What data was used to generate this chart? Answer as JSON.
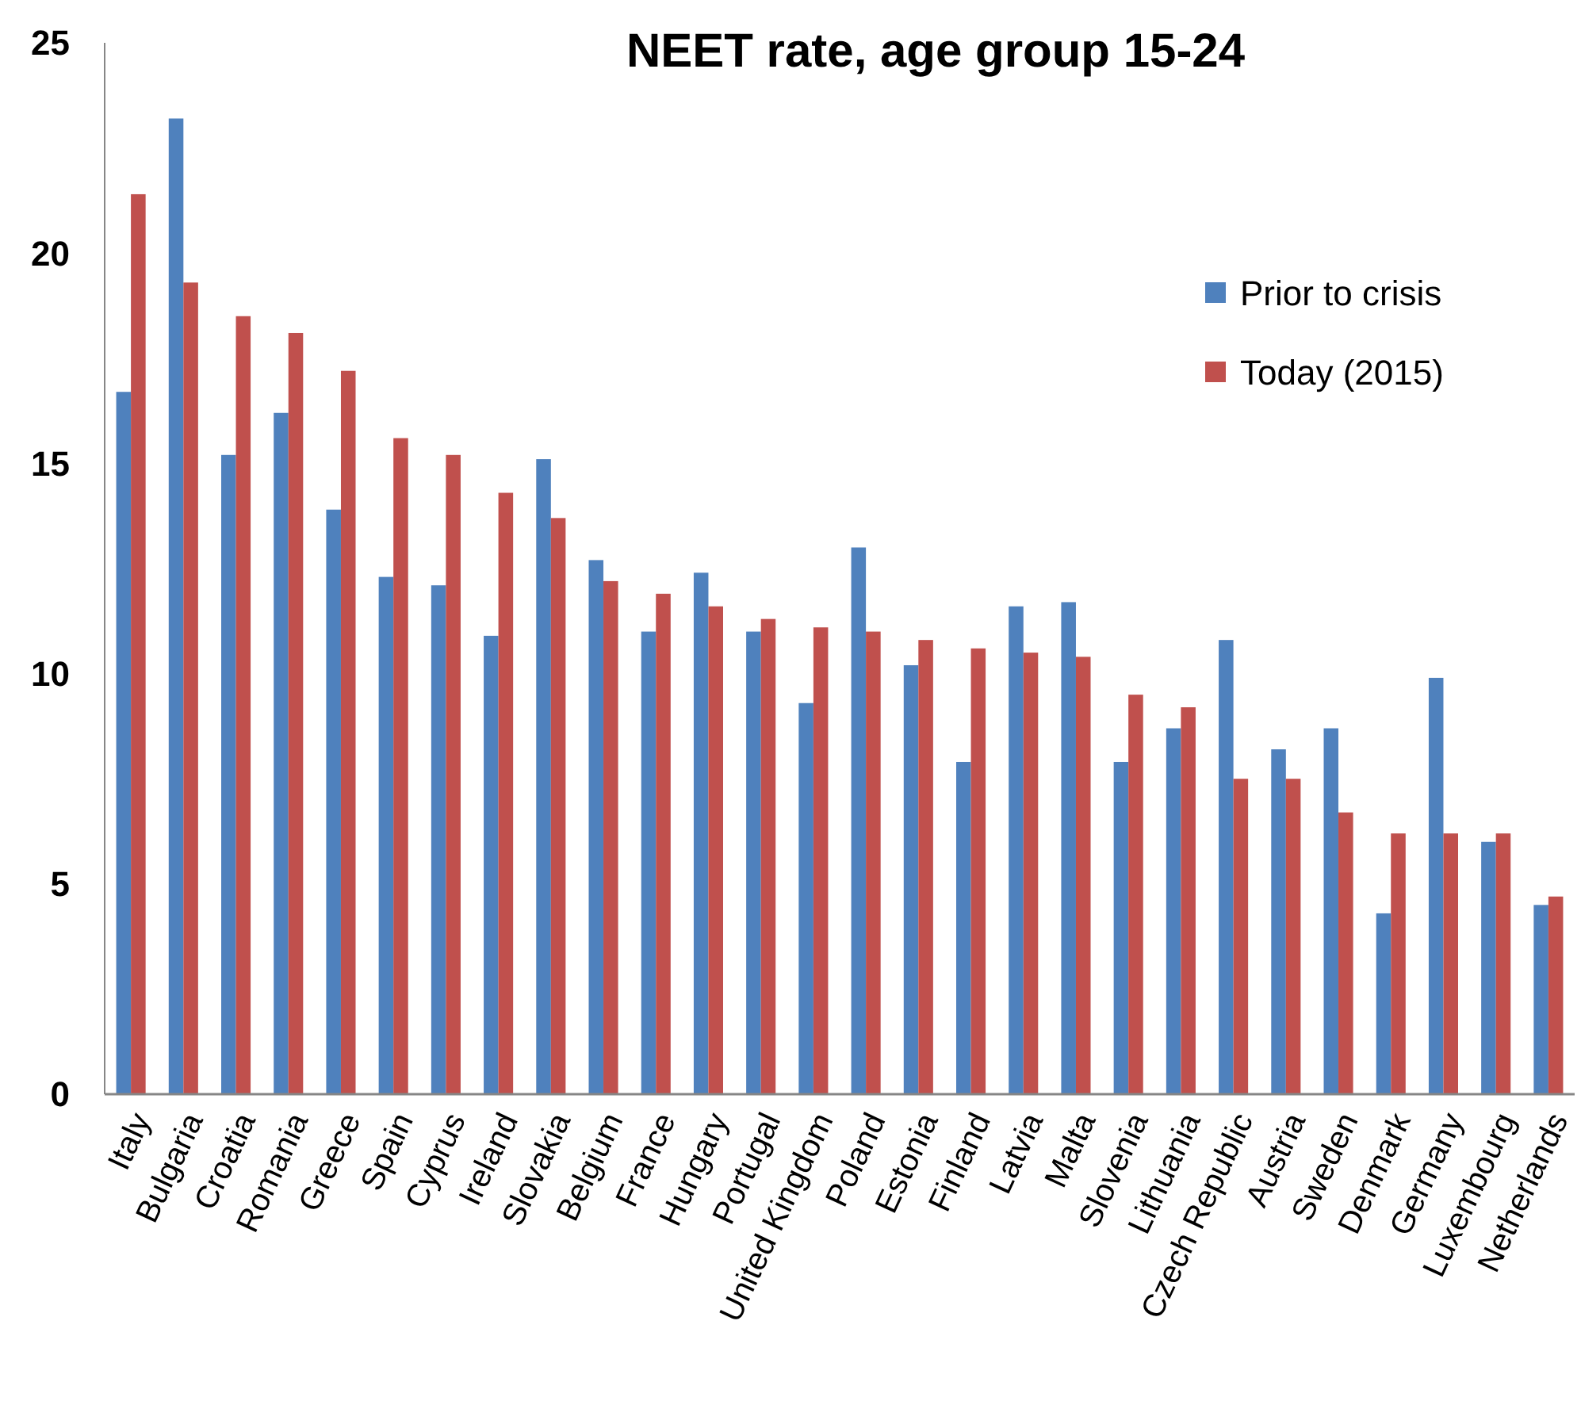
{
  "chart_data": {
    "type": "bar",
    "title": "NEET rate, age group 15-24",
    "categories": [
      "Italy",
      "Bulgaria",
      "Croatia",
      "Romania",
      "Greece",
      "Spain",
      "Cyprus",
      "Ireland",
      "Slovakia",
      "Belgium",
      "France",
      "Hungary",
      "Portugal",
      "United Kingdom",
      "Poland",
      "Estonia",
      "Finland",
      "Latvia",
      "Malta",
      "Slovenia",
      "Lithuania",
      "Czech Republic",
      "Austria",
      "Sweden",
      "Denmark",
      "Germany",
      "Luxembourg",
      "Netherlands"
    ],
    "series": [
      {
        "name": "Prior to crisis",
        "color": "#4f81bd",
        "values": [
          16.7,
          23.2,
          15.2,
          16.2,
          13.9,
          12.3,
          12.1,
          10.9,
          15.1,
          12.7,
          11.0,
          12.4,
          11.0,
          9.3,
          13.0,
          10.2,
          7.9,
          11.6,
          11.7,
          7.9,
          8.7,
          10.8,
          8.2,
          8.7,
          4.3,
          9.9,
          6.0,
          4.5
        ]
      },
      {
        "name": "Today (2015)",
        "color": "#c0504d",
        "values": [
          21.4,
          19.3,
          18.5,
          18.1,
          17.2,
          15.6,
          15.2,
          14.3,
          13.7,
          12.2,
          11.9,
          11.6,
          11.3,
          11.1,
          11.0,
          10.8,
          10.6,
          10.5,
          10.4,
          9.5,
          9.2,
          7.5,
          7.5,
          6.7,
          6.2,
          6.2,
          6.2,
          4.7
        ]
      }
    ],
    "ylim": [
      0,
      25
    ],
    "yticks": [
      0,
      5,
      10,
      15,
      20,
      25
    ],
    "legend": "right"
  }
}
